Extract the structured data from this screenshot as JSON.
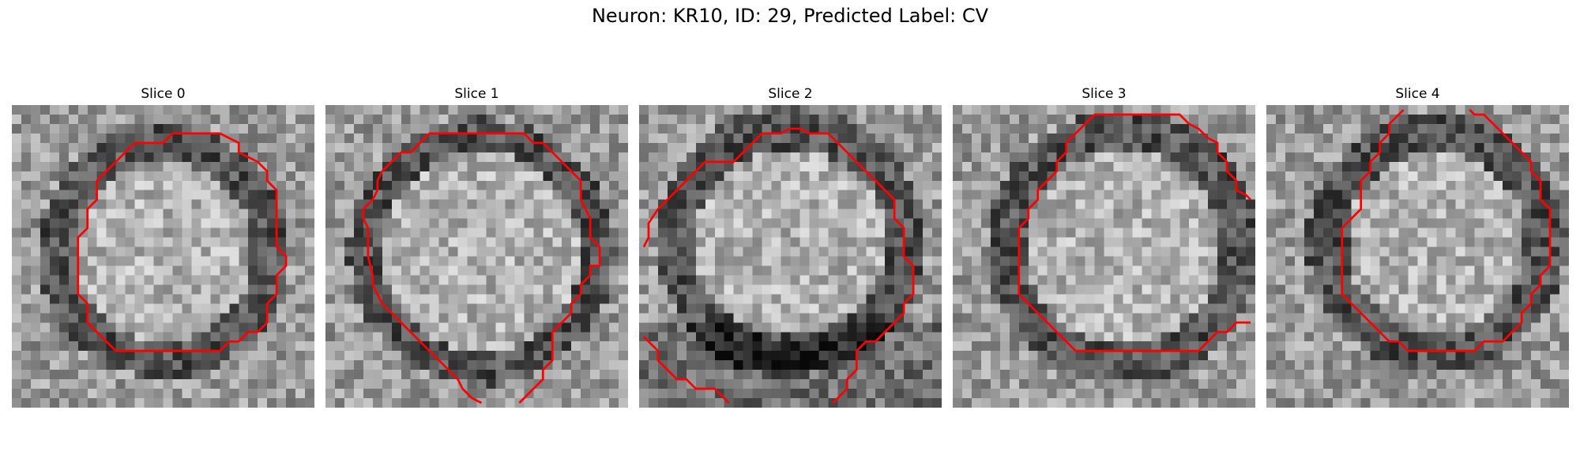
{
  "figure": {
    "title": "Neuron: KR10, ID: 29, Predicted Label: CV"
  },
  "slices": [
    {
      "title": "Slice 0"
    },
    {
      "title": "Slice 1"
    },
    {
      "title": "Slice 2"
    },
    {
      "title": "Slice 3"
    },
    {
      "title": "Slice 4"
    }
  ],
  "colors": {
    "contour": "#ff0000",
    "background": "#ffffff"
  }
}
